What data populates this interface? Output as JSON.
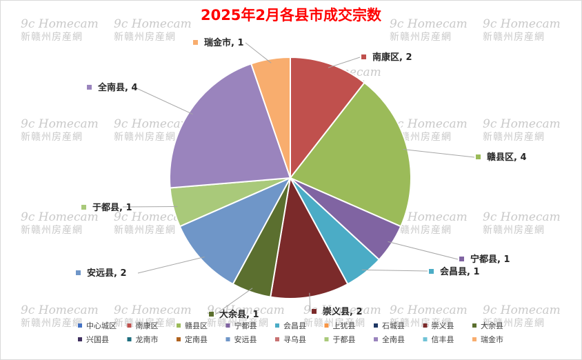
{
  "chart_data": {
    "type": "pie",
    "title": "2025年2月各县市成交宗数",
    "categories": [
      "中心城区",
      "南康区",
      "赣县区",
      "宁都县",
      "会昌县",
      "上犹县",
      "石城县",
      "崇义县",
      "大余县",
      "兴国县",
      "龙南市",
      "定南县",
      "安远县",
      "寻乌县",
      "于都县",
      "全南县",
      "信丰县",
      "瑞金市"
    ],
    "values": [
      0,
      2,
      4,
      1,
      1,
      0,
      0,
      2,
      1,
      0,
      0,
      0,
      2,
      0,
      1,
      4,
      0,
      1
    ],
    "colors": [
      "#4472c4",
      "#c0504d",
      "#9bbb59",
      "#8064a2",
      "#4bacc6",
      "#f79646",
      "#1f3864",
      "#7b2a2a",
      "#5b6f2f",
      "#3f2f5f",
      "#1e6e7e",
      "#b0631f",
      "#6f96c8",
      "#c87272",
      "#a9c97a",
      "#9a84bd",
      "#71c3d6",
      "#f8ad6e"
    ],
    "data_labels": [
      "",
      "南康区, 2",
      "赣县区, 4",
      "宁都县, 1",
      "会昌县, 1",
      "",
      "",
      "崇义县, 2",
      "大余县, 1",
      "",
      "",
      "",
      "安远县, 2",
      "",
      "于都县, 1",
      "全南县, 4",
      "",
      "瑞金市, 1"
    ],
    "legend_position": "bottom",
    "watermark": {
      "en": "9c Homecam",
      "cn": "新赣州房産網"
    }
  }
}
